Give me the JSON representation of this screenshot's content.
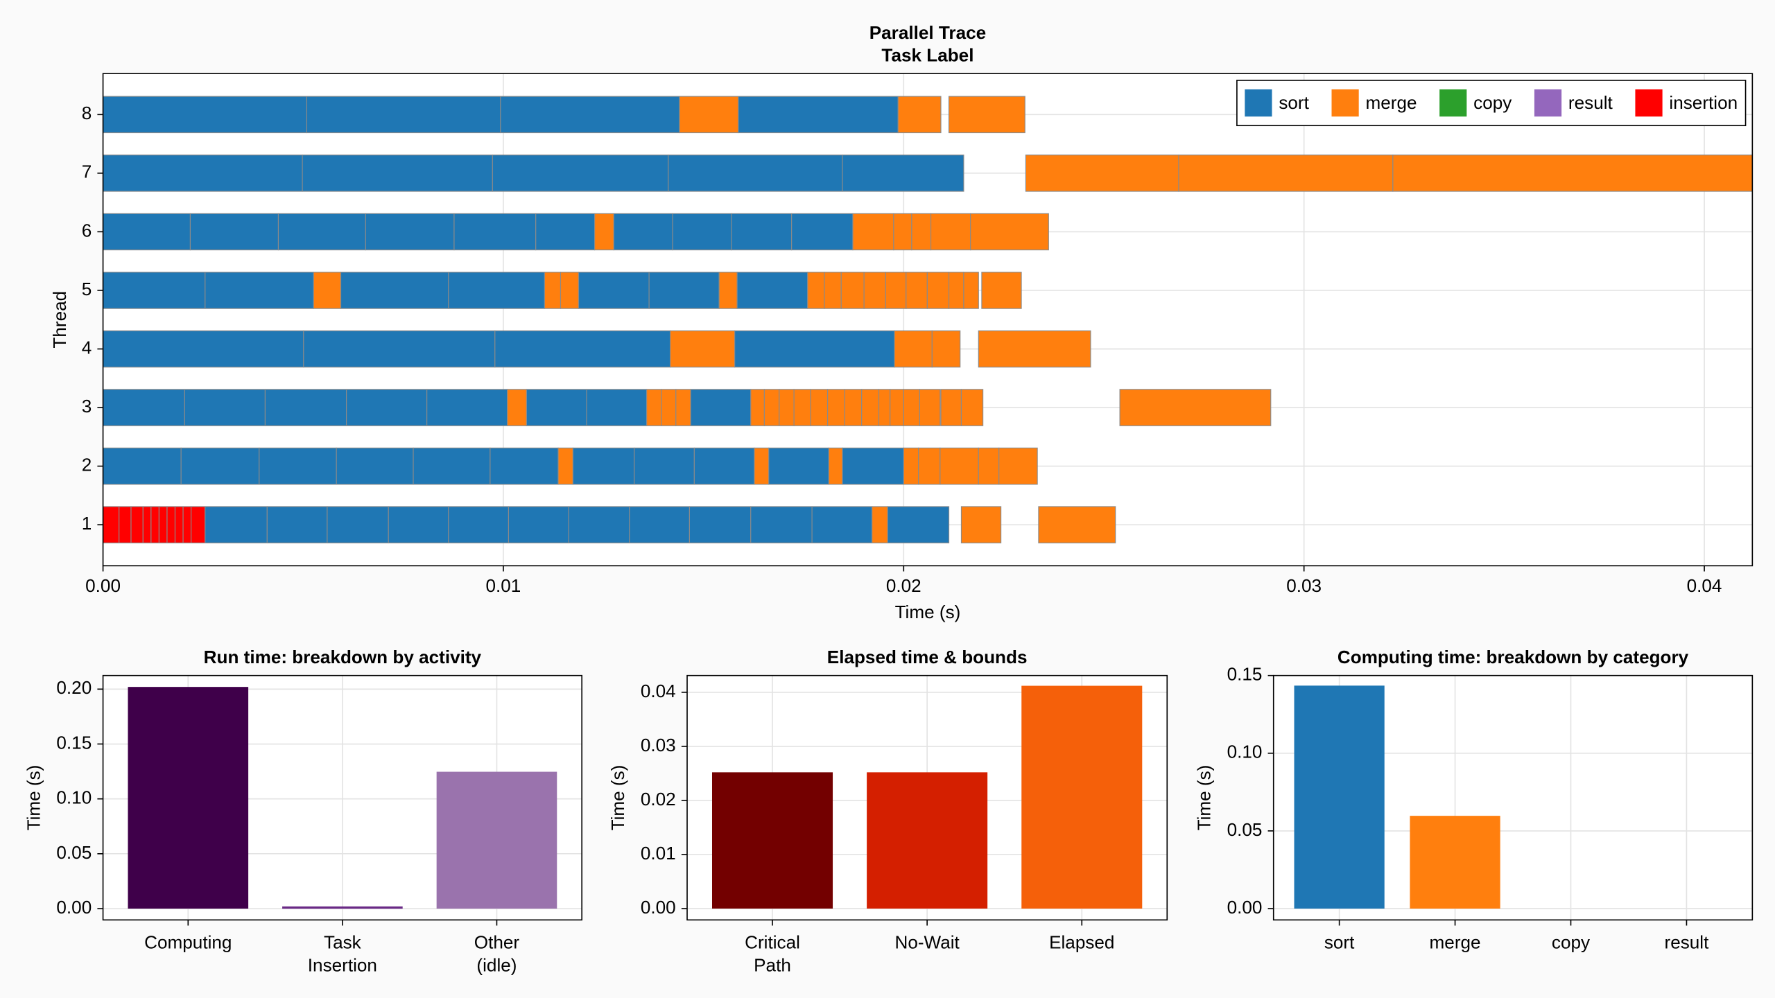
{
  "chart_data": [
    {
      "type": "gantt",
      "title": "Parallel Trace",
      "subtitle": "Task Label",
      "xlabel": "Time (s)",
      "ylabel": "Thread",
      "xlim": [
        0,
        0.0412
      ],
      "xticks": [
        {
          "value": 0,
          "label": "0.00"
        },
        0.01,
        0.02,
        0.03,
        0.04
      ],
      "ylim": [
        0.3,
        8.7
      ],
      "yticks": [
        1,
        2,
        3,
        4,
        5,
        6,
        7,
        8
      ],
      "grid": true,
      "legend": "upper right",
      "series": [
        {
          "name": "sort",
          "color": "#1f77b4"
        },
        {
          "name": "merge",
          "color": "#ff7f0e"
        },
        {
          "name": "copy",
          "color": "#2ca02c"
        },
        {
          "name": "result",
          "color": "#9467bd"
        },
        {
          "name": "insertion",
          "color": "#ff0000"
        }
      ],
      "threads": [
        {
          "thread": 1,
          "start": [
            0,
            0.0004,
            0.0007,
            0.001,
            0.0012,
            0.0014,
            0.0016,
            0.0018,
            0.002,
            0.0022,
            0.00255,
            0.0041,
            0.0056,
            0.00713,
            0.00863,
            0.01013,
            0.01163,
            0.01315,
            0.01465,
            0.01618,
            0.01771,
            0.01921,
            0.0196,
            0.02144,
            0.02337
          ],
          "end": [
            0.0004,
            0.0007,
            0.001,
            0.0012,
            0.0014,
            0.0016,
            0.0018,
            0.002,
            0.0022,
            0.00255,
            0.0041,
            0.0056,
            0.00713,
            0.00863,
            0.01013,
            0.01163,
            0.01315,
            0.01465,
            0.01618,
            0.01771,
            0.01921,
            0.0196,
            0.02113,
            0.02243,
            0.02529
          ],
          "category": [
            "insertion",
            "insertion",
            "insertion",
            "insertion",
            "insertion",
            "insertion",
            "insertion",
            "insertion",
            "insertion",
            "insertion",
            "sort",
            "sort",
            "sort",
            "sort",
            "sort",
            "sort",
            "sort",
            "sort",
            "sort",
            "sort",
            "sort",
            "merge",
            "sort",
            "merge",
            "merge"
          ]
        },
        {
          "thread": 2,
          "start": [
            0,
            0.00195,
            0.0039,
            0.00583,
            0.00775,
            0.00967,
            0.01137,
            0.01174,
            0.01327,
            0.01477,
            0.01627,
            0.01663,
            0.01813,
            0.01847,
            0.02,
            0.02037,
            0.02091,
            0.02187,
            0.02238
          ],
          "end": [
            0.00195,
            0.0039,
            0.00583,
            0.00775,
            0.00967,
            0.01137,
            0.01174,
            0.01327,
            0.01477,
            0.01627,
            0.01663,
            0.01813,
            0.01847,
            0.02,
            0.02037,
            0.02091,
            0.02187,
            0.02238,
            0.02334
          ],
          "category": [
            "sort",
            "sort",
            "sort",
            "sort",
            "sort",
            "sort",
            "merge",
            "sort",
            "sort",
            "sort",
            "merge",
            "sort",
            "merge",
            "sort",
            "merge",
            "merge",
            "merge",
            "merge",
            "merge"
          ]
        },
        {
          "thread": 3,
          "start": [
            0,
            0.00204,
            0.00405,
            0.00608,
            0.00809,
            0.0101,
            0.01058,
            0.01208,
            0.01358,
            0.01395,
            0.01431,
            0.01468,
            0.01618,
            0.01652,
            0.01689,
            0.01726,
            0.01768,
            0.0181,
            0.01853,
            0.01895,
            0.01938,
            0.01966,
            0.02,
            0.0204,
            0.02093,
            0.02144,
            0.0254
          ],
          "end": [
            0.00204,
            0.00405,
            0.00608,
            0.00809,
            0.0101,
            0.01058,
            0.01208,
            0.01358,
            0.01395,
            0.01431,
            0.01468,
            0.01618,
            0.01652,
            0.01689,
            0.01726,
            0.01768,
            0.0181,
            0.01853,
            0.01895,
            0.01938,
            0.01966,
            0.02,
            0.0204,
            0.02091,
            0.02144,
            0.02198,
            0.02917
          ],
          "category": [
            "sort",
            "sort",
            "sort",
            "sort",
            "sort",
            "merge",
            "sort",
            "sort",
            "merge",
            "merge",
            "merge",
            "sort",
            "merge",
            "merge",
            "merge",
            "merge",
            "merge",
            "merge",
            "merge",
            "merge",
            "merge",
            "merge",
            "merge",
            "merge",
            "merge",
            "merge",
            "merge"
          ]
        },
        {
          "thread": 4,
          "start": [
            0,
            0.00501,
            0.00979,
            0.01417,
            0.01578,
            0.01977,
            0.02071,
            0.02187
          ],
          "end": [
            0.00501,
            0.00979,
            0.01417,
            0.01578,
            0.01977,
            0.02071,
            0.02141,
            0.02467
          ],
          "category": [
            "sort",
            "sort",
            "sort",
            "merge",
            "sort",
            "merge",
            "merge",
            "merge"
          ]
        },
        {
          "thread": 5,
          "start": [
            0,
            0.00255,
            0.00526,
            0.00594,
            0.00863,
            0.01103,
            0.01143,
            0.01188,
            0.01364,
            0.01539,
            0.01584,
            0.0176,
            0.01802,
            0.01844,
            0.01901,
            0.01955,
            0.02006,
            0.02059,
            0.02113,
            0.0215,
            0.02195
          ],
          "end": [
            0.00255,
            0.00526,
            0.00594,
            0.00863,
            0.01103,
            0.01143,
            0.01188,
            0.01364,
            0.01539,
            0.01584,
            0.0176,
            0.01802,
            0.01844,
            0.01901,
            0.01955,
            0.02006,
            0.02059,
            0.02113,
            0.0215,
            0.02187,
            0.02294
          ],
          "category": [
            "sort",
            "sort",
            "merge",
            "sort",
            "sort",
            "merge",
            "merge",
            "sort",
            "sort",
            "merge",
            "sort",
            "merge",
            "merge",
            "merge",
            "merge",
            "merge",
            "merge",
            "merge",
            "merge",
            "merge",
            "merge"
          ]
        },
        {
          "thread": 6,
          "start": [
            0,
            0.00218,
            0.00438,
            0.00656,
            0.00877,
            0.01081,
            0.01228,
            0.01276,
            0.01423,
            0.0157,
            0.0172,
            0.01873,
            0.01975,
            0.0202,
            0.02068,
            0.02167
          ],
          "end": [
            0.00218,
            0.00438,
            0.00656,
            0.00877,
            0.01081,
            0.01228,
            0.01276,
            0.01423,
            0.0157,
            0.0172,
            0.01873,
            0.01975,
            0.0202,
            0.02068,
            0.02167,
            0.02362
          ],
          "category": [
            "sort",
            "sort",
            "sort",
            "sort",
            "sort",
            "sort",
            "merge",
            "sort",
            "sort",
            "sort",
            "sort",
            "merge",
            "merge",
            "merge",
            "merge",
            "merge"
          ]
        },
        {
          "thread": 7,
          "start": [
            0,
            0.00498,
            0.00973,
            0.01412,
            0.01847,
            0.02305,
            0.02687,
            0.03222
          ],
          "end": [
            0.00498,
            0.00973,
            0.01412,
            0.01847,
            0.0215,
            0.02687,
            0.03222,
            0.04122
          ],
          "category": [
            "sort",
            "sort",
            "sort",
            "sort",
            "sort",
            "merge",
            "merge",
            "merge"
          ]
        },
        {
          "thread": 8,
          "start": [
            0,
            0.00509,
            0.00993,
            0.0144,
            0.01587,
            0.01986,
            0.02113
          ],
          "end": [
            0.00509,
            0.00993,
            0.0144,
            0.01587,
            0.01986,
            0.02093,
            0.02303
          ],
          "category": [
            "sort",
            "sort",
            "sort",
            "merge",
            "sort",
            "merge",
            "merge"
          ]
        }
      ]
    },
    {
      "type": "bar",
      "title": "Run time: breakdown by activity",
      "ylabel": "Time (s)",
      "categories": [
        "Computing",
        "Task\nInsertion",
        "Other\n(idle)"
      ],
      "values": [
        0.202,
        0.002,
        0.1247
      ],
      "colors": [
        "#3f004a",
        "#6a2a86",
        "#9a73ad"
      ],
      "ylim": [
        -0.0103,
        0.2124
      ],
      "yticks": [
        {
          "value": 0,
          "label": "0.00"
        },
        0.05,
        {
          "value": 0.1,
          "label": "0.10"
        },
        0.15,
        {
          "value": 0.2,
          "label": "0.20"
        }
      ],
      "grid": true
    },
    {
      "type": "bar",
      "title": "Elapsed time & bounds",
      "ylabel": "Time (s)",
      "categories": [
        "Critical\nPath",
        "No-Wait",
        "Elapsed"
      ],
      "values": [
        0.0252,
        0.0252,
        0.0412
      ],
      "colors": [
        "#730000",
        "#d41f00",
        "#f5600a"
      ],
      "ylim": [
        -0.0021,
        0.0431
      ],
      "yticks": [
        {
          "value": 0,
          "label": "0.00"
        },
        0.01,
        0.02,
        0.03,
        0.04
      ],
      "grid": true
    },
    {
      "type": "bar",
      "title": "Computing time: breakdown by category",
      "ylabel": "Time (s)",
      "categories": [
        "sort",
        "merge",
        "copy",
        "result"
      ],
      "values": [
        0.1435,
        0.0597,
        0,
        0
      ],
      "colors": [
        "#1f77b4",
        "#ff7f0e",
        "#2ca02c",
        "#9467bd"
      ],
      "ylim": [
        -0.0073,
        0.15
      ],
      "yticks": [
        {
          "value": 0,
          "label": "0.00"
        },
        0.05,
        {
          "value": 0.1,
          "label": "0.10"
        },
        0.15
      ],
      "grid": true
    }
  ]
}
